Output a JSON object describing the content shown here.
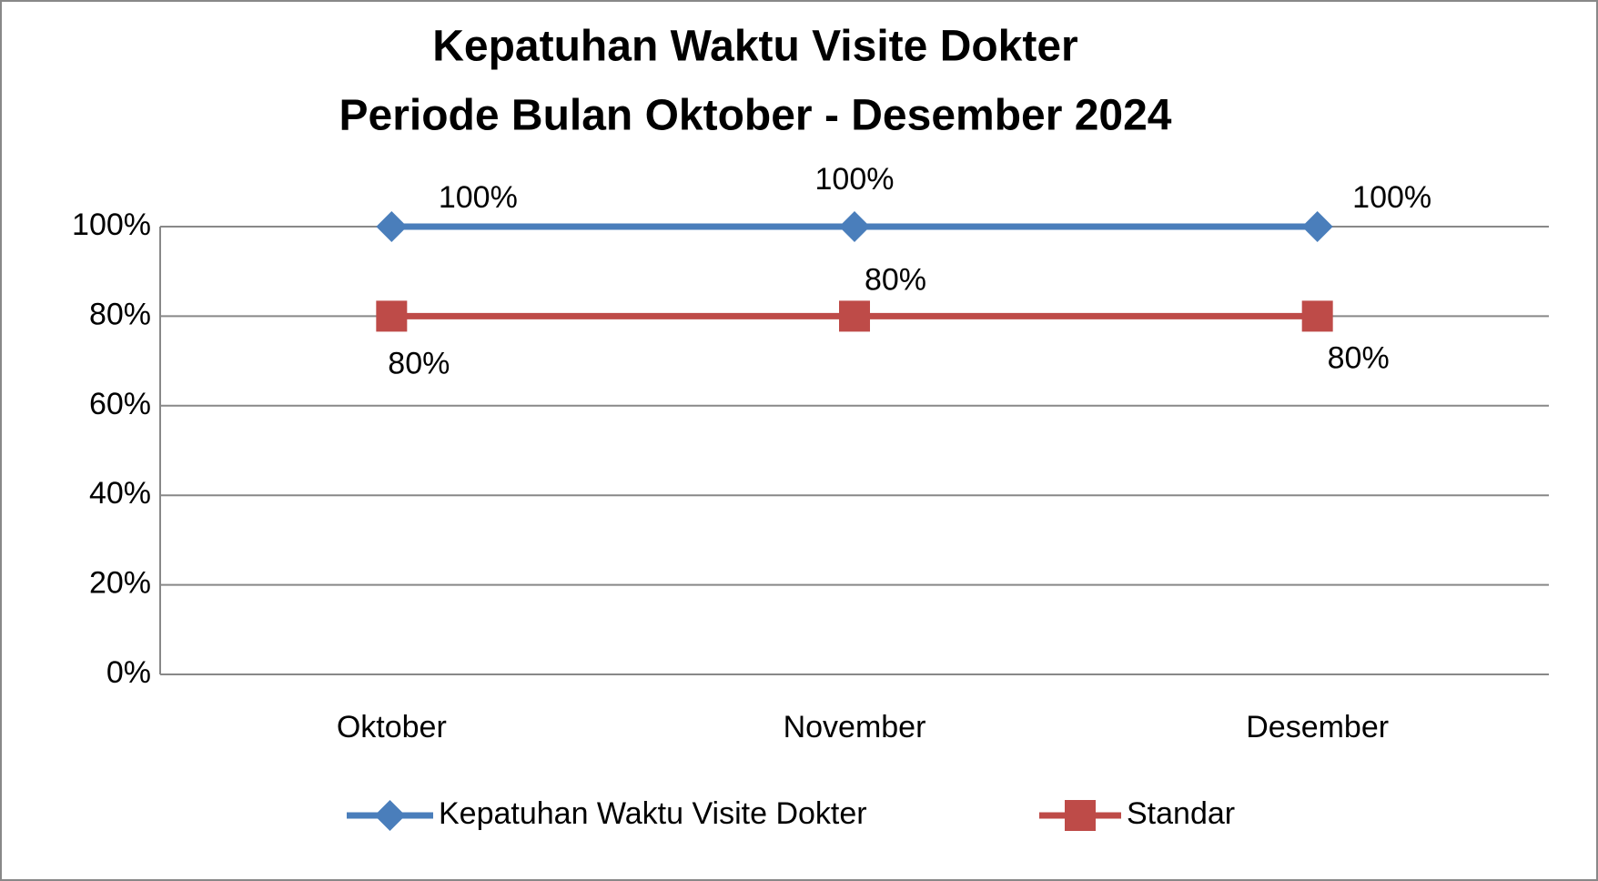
{
  "chart_data": {
    "type": "line",
    "title": [
      "Kepatuhan Waktu Visite Dokter",
      "Periode Bulan Oktober - Desember 2024"
    ],
    "categories": [
      "Oktober",
      "November",
      "Desember"
    ],
    "series": [
      {
        "name": "Kepatuhan Waktu Visite Dokter",
        "color": "#4a7ebb",
        "marker": "diamond",
        "values": [
          100,
          100,
          100
        ],
        "value_labels": [
          "100%",
          "100%",
          "100%"
        ]
      },
      {
        "name": "Standar",
        "color": "#be4b48",
        "marker": "square",
        "values": [
          80,
          80,
          80
        ],
        "value_labels": [
          "80%",
          "80%",
          "80%"
        ]
      }
    ],
    "ylim": [
      0,
      100
    ],
    "yticks": [
      {
        "value": 0,
        "label": "0%"
      },
      {
        "value": 20,
        "label": "20%"
      },
      {
        "value": 40,
        "label": "40%"
      },
      {
        "value": 60,
        "label": "60%"
      },
      {
        "value": 80,
        "label": "80%"
      },
      {
        "value": 100,
        "label": "100%"
      }
    ],
    "grid": true,
    "legend": "bottom"
  }
}
